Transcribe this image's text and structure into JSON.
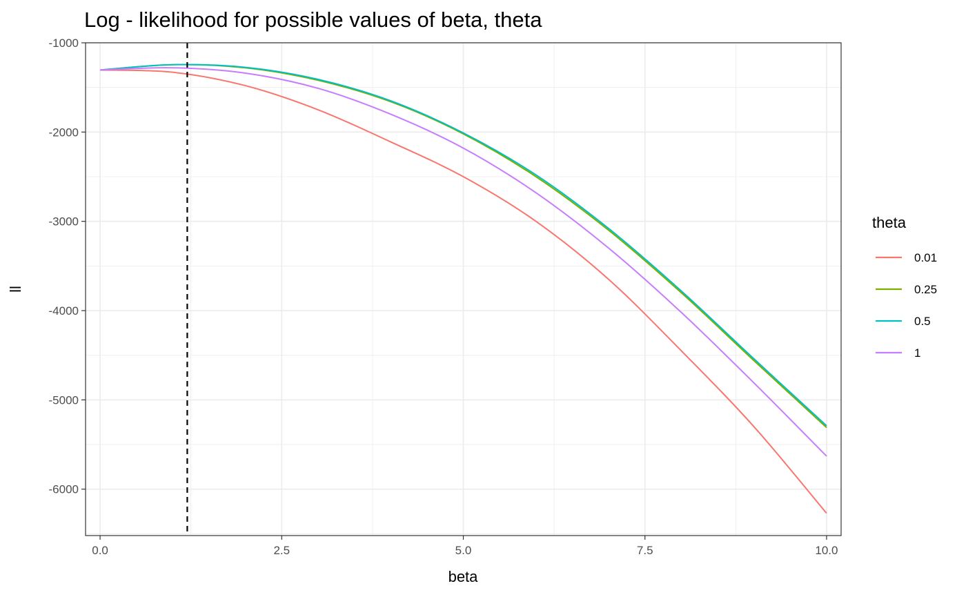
{
  "chart_data": {
    "type": "line",
    "title": "Log - likelihood for possible values of beta, theta",
    "xlabel": "beta",
    "ylabel": "ll",
    "xlim": [
      -0.2,
      10.2
    ],
    "ylim": [
      -6520,
      -1000
    ],
    "xticks": [
      0,
      2.5,
      5,
      7.5,
      10
    ],
    "xtick_labels": [
      "0.0",
      "2.5",
      "5.0",
      "7.5",
      "10.0"
    ],
    "yticks": [
      -6000,
      -5000,
      -4000,
      -3000,
      -2000,
      -1000
    ],
    "ytick_labels": [
      "-6000",
      "-5000",
      "-4000",
      "-3000",
      "-2000",
      "-1000"
    ],
    "grid": true,
    "legend": {
      "title": "theta",
      "position": "right"
    },
    "vline": {
      "x": 1.2,
      "style": "dashed",
      "color": "#000000"
    },
    "x": [
      0,
      1,
      2,
      3,
      4,
      5,
      6,
      7,
      8,
      9,
      10
    ],
    "series": [
      {
        "name": "0.01",
        "color": "#F8766D",
        "values": [
          -1305,
          -1330,
          -1480,
          -1750,
          -2110,
          -2500,
          -3000,
          -3650,
          -4450,
          -5300,
          -6270
        ]
      },
      {
        "name": "0.25",
        "color": "#7CAE00",
        "values": [
          -1305,
          -1245,
          -1280,
          -1420,
          -1660,
          -2020,
          -2500,
          -3100,
          -3800,
          -4560,
          -5310
        ]
      },
      {
        "name": "0.5",
        "color": "#00BFC4",
        "values": [
          -1305,
          -1245,
          -1275,
          -1410,
          -1650,
          -2010,
          -2480,
          -3080,
          -3780,
          -4540,
          -5290
        ]
      },
      {
        "name": "1",
        "color": "#C77CFF",
        "values": [
          -1305,
          -1280,
          -1340,
          -1510,
          -1800,
          -2180,
          -2680,
          -3300,
          -4020,
          -4810,
          -5630
        ]
      }
    ]
  }
}
